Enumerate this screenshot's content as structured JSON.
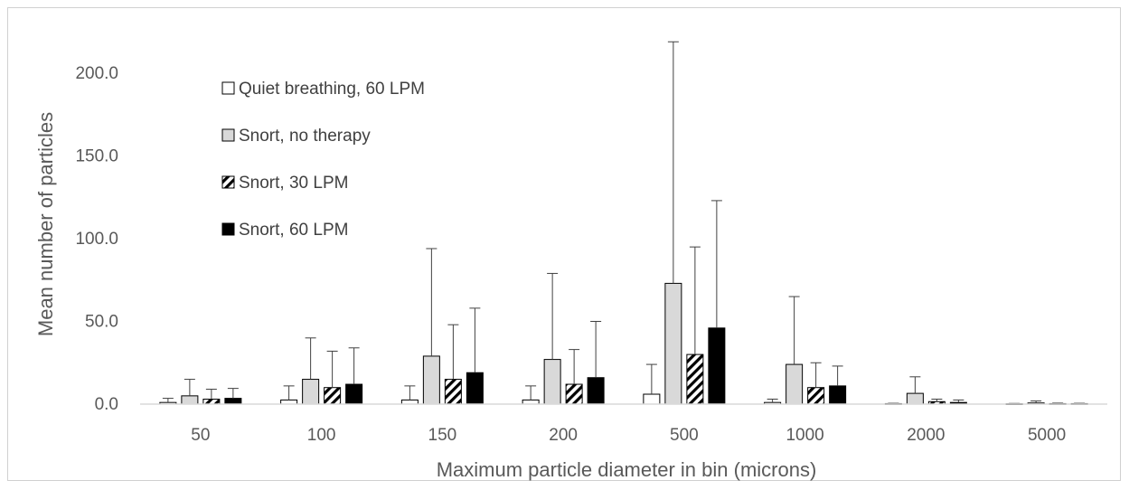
{
  "chart_data": {
    "type": "bar",
    "title": "",
    "xlabel": "Maximum particle diameter in bin (microns)",
    "ylabel": "Mean number of particles",
    "ylim": [
      0,
      200
    ],
    "yticks": [
      "0.0",
      "50.0",
      "100.0",
      "150.0",
      "200.0"
    ],
    "ytick_values": [
      0,
      50,
      100,
      150,
      200
    ],
    "grid": false,
    "legend_position": "top-left",
    "categories": [
      "50",
      "100",
      "150",
      "200",
      "500",
      "1000",
      "2000",
      "5000"
    ],
    "series": [
      {
        "name": "Quiet breathing, 60 LPM",
        "fill": "white",
        "values": [
          1.0,
          2.5,
          2.5,
          2.5,
          6.0,
          1.0,
          0.3,
          0.2
        ],
        "error": [
          2.5,
          8.5,
          8.5,
          8.5,
          18.0,
          2.0,
          0.2,
          0.2
        ]
      },
      {
        "name": "Snort, no therapy",
        "fill": "#d9d9d9",
        "values": [
          5.0,
          15.0,
          29.0,
          27.0,
          73.0,
          24.0,
          6.5,
          0.7
        ],
        "error": [
          10.0,
          25.0,
          65.0,
          52.0,
          146.0,
          41.0,
          10.0,
          1.2
        ]
      },
      {
        "name": "Snort, 30 LPM",
        "fill": "hatch",
        "values": [
          3.0,
          10.0,
          15.0,
          12.0,
          30.0,
          10.0,
          1.5,
          0.3
        ],
        "error": [
          6.0,
          22.0,
          33.0,
          21.0,
          65.0,
          15.0,
          1.5,
          0.3
        ]
      },
      {
        "name": "Snort, 60 LPM",
        "fill": "black",
        "values": [
          3.5,
          12.0,
          19.0,
          16.0,
          46.0,
          11.0,
          1.0,
          0.3
        ],
        "error": [
          6.0,
          22.0,
          39.0,
          34.0,
          77.0,
          12.0,
          1.5,
          0.2
        ]
      }
    ]
  }
}
